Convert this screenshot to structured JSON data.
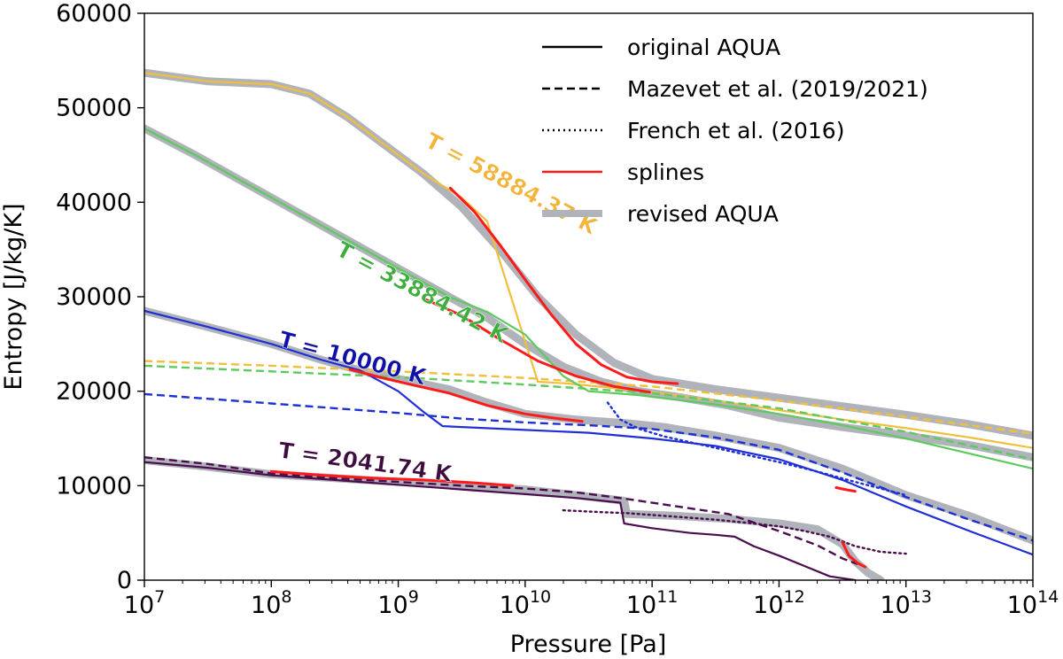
{
  "chart_data": {
    "type": "line",
    "xlabel": "Pressure [Pa]",
    "ylabel": "Entropy [J/kg/K]",
    "xscale": "log",
    "xlim": [
      10000000.0,
      100000000000000.0
    ],
    "ylim": [
      0,
      60000
    ],
    "x_ticks": [
      {
        "base": "10",
        "exp": "7"
      },
      {
        "base": "10",
        "exp": "8"
      },
      {
        "base": "10",
        "exp": "9"
      },
      {
        "base": "10",
        "exp": "10"
      },
      {
        "base": "10",
        "exp": "11"
      },
      {
        "base": "10",
        "exp": "12"
      },
      {
        "base": "10",
        "exp": "13"
      },
      {
        "base": "10",
        "exp": "14"
      }
    ],
    "y_ticks": [
      "0",
      "10000",
      "20000",
      "30000",
      "40000",
      "50000",
      "60000"
    ],
    "legend_position": "top-right",
    "legend": [
      {
        "label": "original AQUA",
        "style": "solid",
        "color": "#000000"
      },
      {
        "label": "Mazevet et al. (2019/2021)",
        "style": "dashed",
        "color": "#000000"
      },
      {
        "label": "French et al. (2016)",
        "style": "dotted",
        "color": "#000000"
      },
      {
        "label": "splines",
        "style": "solid",
        "color": "#ff1a1a"
      },
      {
        "label": "revised AQUA",
        "style": "thick",
        "color": "#b0b3ba"
      }
    ],
    "annotations": [
      {
        "text": "T = 58884.37 K",
        "color": "#f2b43a",
        "at": [
          9.2,
          46000
        ],
        "rotate": 28
      },
      {
        "text": "T = 33884.42 K",
        "color": "#3fae3f",
        "at": [
          8.5,
          34500
        ],
        "rotate": 28
      },
      {
        "text": "T = 10000 K",
        "color": "#1111aa",
        "at": [
          8.05,
          24800
        ],
        "rotate": 15
      },
      {
        "text": "T = 2041.74 K",
        "color": "#3d0d3f",
        "at": [
          8.05,
          13000
        ],
        "rotate": 8
      }
    ],
    "series": [
      {
        "color": "#b0b3ba",
        "style": "revised",
        "x": [
          7,
          7.5,
          8,
          8.3,
          8.6,
          8.9,
          9.2,
          9.5,
          9.8,
          10.1,
          10.4,
          10.7,
          11,
          11.5,
          12,
          12.5,
          13,
          13.5,
          14
        ],
        "y": [
          53700,
          52800,
          52500,
          51500,
          49000,
          46000,
          43000,
          39500,
          35000,
          30000,
          26000,
          23000,
          21300,
          20200,
          19300,
          18400,
          17500,
          16500,
          15300
        ]
      },
      {
        "color": "#b0b3ba",
        "style": "revised",
        "x": [
          7,
          7.4,
          7.8,
          8.2,
          8.6,
          9,
          9.4,
          9.7,
          10,
          10.3,
          10.6,
          10.9,
          11.2,
          11.6,
          12,
          12.5,
          13,
          13.5,
          14
        ],
        "y": [
          47800,
          45000,
          42000,
          39000,
          36000,
          33000,
          30000,
          27800,
          25000,
          22600,
          21000,
          20000,
          19400,
          18500,
          17200,
          16200,
          15300,
          14300,
          13000
        ]
      },
      {
        "color": "#b0b3ba",
        "style": "revised",
        "x": [
          7,
          7.5,
          8,
          8.4,
          8.7,
          9,
          9.4,
          9.7,
          10,
          10.4,
          10.8,
          11.1,
          11.5,
          12,
          12.5,
          13,
          13.5,
          14
        ],
        "y": [
          28500,
          26800,
          25000,
          23300,
          22200,
          21300,
          20200,
          18800,
          17600,
          17000,
          16600,
          16200,
          15300,
          14000,
          11800,
          9000,
          6800,
          4200
        ]
      },
      {
        "color": "#b0b3ba",
        "style": "revised",
        "x": [
          7,
          7.5,
          8,
          8.5,
          9,
          9.5,
          10,
          10.4,
          10.78,
          10.8,
          11.2,
          11.6,
          12,
          12.3,
          12.5,
          12.6,
          12.7,
          12.8
        ],
        "y": [
          12700,
          12000,
          11200,
          10800,
          10400,
          10000,
          9600,
          9000,
          8400,
          7000,
          6800,
          6500,
          6000,
          5400,
          3800,
          2000,
          800,
          0
        ]
      },
      {
        "color": "#f2bf3c",
        "style": "solid",
        "x": [
          7,
          7.5,
          8,
          8.3,
          8.6,
          8.9,
          9.2,
          9.5,
          9.7,
          10.1,
          10.35,
          11,
          11.5,
          12,
          12.5,
          13,
          13.5,
          14
        ],
        "y": [
          53700,
          52800,
          52500,
          51500,
          49000,
          46000,
          43000,
          40500,
          38000,
          21000,
          20800,
          19900,
          19000,
          18000,
          17000,
          16100,
          15100,
          14000
        ]
      },
      {
        "color": "#f2bf3c",
        "style": "dashed",
        "x": [
          7,
          8,
          9,
          10,
          11,
          12,
          13,
          14
        ],
        "y": [
          23200,
          22700,
          22100,
          21400,
          20500,
          19000,
          17300,
          15500
        ]
      },
      {
        "color": "#5ec95e",
        "style": "solid",
        "x": [
          7,
          7.4,
          7.8,
          8.2,
          8.6,
          9,
          9.4,
          9.7,
          10,
          10.3,
          10.5,
          10.88,
          11.5,
          12,
          12.5,
          13,
          13.5,
          14
        ],
        "y": [
          47800,
          45000,
          42000,
          39000,
          36000,
          33000,
          30000,
          28400,
          26000,
          21600,
          20000,
          19600,
          18600,
          17600,
          16400,
          15000,
          13400,
          11800
        ]
      },
      {
        "color": "#5ec95e",
        "style": "dashed",
        "x": [
          7,
          8,
          9,
          10,
          11,
          12,
          13,
          14
        ],
        "y": [
          22700,
          22100,
          21500,
          20700,
          19800,
          18200,
          15700,
          12800
        ]
      },
      {
        "color": "#1f2fd6",
        "style": "solid",
        "x": [
          7,
          7.5,
          8,
          8.4,
          8.7,
          9,
          9.2,
          9.35,
          10,
          10.5,
          11,
          11.5,
          12,
          12.5,
          13,
          13.5,
          14
        ],
        "y": [
          28500,
          26800,
          25000,
          23300,
          22200,
          20000,
          17800,
          16300,
          15900,
          15600,
          15000,
          14200,
          12800,
          10600,
          7800,
          5200,
          2700
        ]
      },
      {
        "color": "#1f2fd6",
        "style": "dashed",
        "x": [
          7,
          7.5,
          8,
          8.5,
          9,
          9.5,
          10,
          10.5,
          11,
          11.5,
          12,
          12.5,
          13,
          13.5,
          14
        ],
        "y": [
          19700,
          19200,
          18700,
          18200,
          17700,
          17100,
          16700,
          16400,
          16000,
          15100,
          13800,
          11400,
          8800,
          6400,
          4200
        ]
      },
      {
        "color": "#1f2fd6",
        "style": "dotted",
        "x": [
          10.65,
          10.75,
          10.9,
          11.1,
          11.4,
          11.7,
          12,
          12.3,
          12.6,
          12.8,
          13
        ],
        "y": [
          18800,
          17000,
          16000,
          15200,
          14300,
          13400,
          12500,
          11500,
          10400,
          9700,
          9000
        ]
      },
      {
        "color": "#4a0e4e",
        "style": "solid",
        "x": [
          7,
          7.5,
          8,
          8.5,
          9,
          9.5,
          10,
          10.4,
          10.75,
          10.78,
          11,
          11.3,
          11.5,
          11.65,
          11.8,
          12,
          12.2,
          12.4,
          12.6
        ],
        "y": [
          12500,
          11900,
          11100,
          10600,
          10100,
          9600,
          9100,
          8700,
          8200,
          6000,
          5500,
          5000,
          4800,
          4600,
          3600,
          2600,
          1500,
          400,
          0
        ]
      },
      {
        "color": "#4a0e4e",
        "style": "dashed",
        "x": [
          7,
          7.5,
          8,
          8.5,
          9,
          9.5,
          10,
          10.4,
          10.8,
          11.2,
          11.6,
          12,
          12.3,
          12.5,
          12.62
        ],
        "y": [
          13000,
          12300,
          11300,
          10800,
          10400,
          10000,
          9700,
          9300,
          8600,
          7800,
          7000,
          5200,
          3700,
          2300,
          1700
        ]
      },
      {
        "color": "#4a0e4e",
        "style": "dotted",
        "x": [
          10.3,
          10.6,
          10.8,
          11,
          11.2,
          11.5,
          11.8,
          12,
          12.2,
          12.4,
          12.6,
          12.8,
          13
        ],
        "y": [
          7400,
          7200,
          7100,
          6900,
          6700,
          6400,
          6000,
          5700,
          5200,
          4600,
          3600,
          3000,
          2800
        ]
      },
      {
        "color": "#ff1a1a",
        "style": "solid",
        "x": [
          9.41,
          9.6,
          9.8,
          10,
          10.2,
          10.4,
          10.6,
          10.8,
          11,
          11.2
        ],
        "y": [
          41500,
          39000,
          35500,
          31800,
          28200,
          25000,
          22800,
          21500,
          21000,
          20800
        ]
      },
      {
        "color": "#ff1a1a",
        "style": "solid",
        "x": [
          9.2,
          9.5,
          9.8,
          10.1,
          10.4,
          10.7,
          10.98
        ],
        "y": [
          29800,
          28000,
          25500,
          23200,
          21600,
          20500,
          19900
        ]
      },
      {
        "color": "#ff1a1a",
        "style": "solid",
        "x": [
          8.62,
          8.85,
          9.1,
          9.4,
          9.7,
          10,
          10.2,
          10.45
        ],
        "y": [
          22300,
          21500,
          20700,
          19800,
          18500,
          17600,
          17200,
          16800
        ]
      },
      {
        "color": "#ff1a1a",
        "style": "solid",
        "x": [
          8.0,
          8.4,
          8.8,
          9.2,
          9.6,
          9.9
        ],
        "y": [
          11500,
          11100,
          10800,
          10600,
          10300,
          10000
        ]
      },
      {
        "color": "#ff1a1a",
        "style": "solid",
        "x": [
          12.45,
          12.52,
          12.6
        ],
        "y": [
          9800,
          9600,
          9400
        ]
      },
      {
        "color": "#ff1a1a",
        "style": "solid",
        "x": [
          12.5,
          12.55,
          12.62,
          12.68
        ],
        "y": [
          4000,
          2600,
          1800,
          1400
        ]
      }
    ]
  }
}
